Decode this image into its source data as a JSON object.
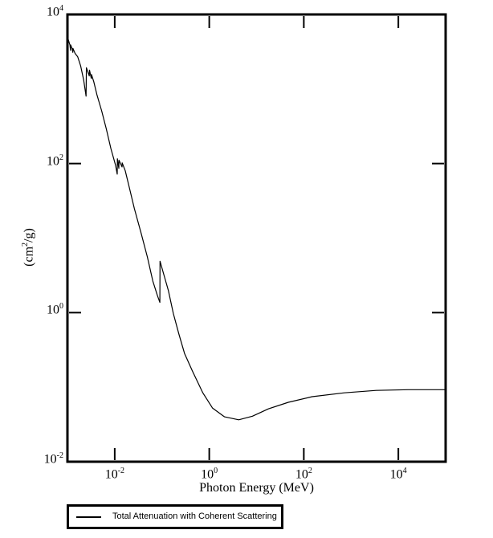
{
  "chart": {
    "xlabel": "Photon Energy (MeV)",
    "ylabel": {
      "pre": "(cm",
      "sup": "2",
      "post": "/g)"
    },
    "x_log_range": [
      -3,
      5
    ],
    "y_log_range": [
      -2,
      4
    ],
    "x_ticks": [
      {
        "base": "10",
        "exp": "-2"
      },
      {
        "base": "10",
        "exp": "0"
      },
      {
        "base": "10",
        "exp": "2"
      },
      {
        "base": "10",
        "exp": "4"
      }
    ],
    "y_ticks": [
      {
        "base": "10",
        "exp": "4"
      },
      {
        "base": "10",
        "exp": "2"
      },
      {
        "base": "10",
        "exp": "0"
      },
      {
        "base": "10",
        "exp": "-2"
      }
    ],
    "line_color": "#000000",
    "background_color": "#ffffff"
  },
  "legend": {
    "label": "Total Attenuation with Coherent Scattering"
  },
  "chart_data": {
    "type": "line",
    "title": "",
    "xlabel": "Photon Energy (MeV)",
    "ylabel": "(cm^2/g)",
    "x_scale": "log",
    "y_scale": "log",
    "xlim": [
      0.001,
      100000
    ],
    "ylim": [
      0.01,
      10000
    ],
    "grid": false,
    "legend_position": "bottom-left-outside",
    "series": [
      {
        "name": "Total Attenuation with Coherent Scattering",
        "color": "#000000",
        "points": [
          [
            0.00102,
            4800
          ],
          [
            0.00113,
            3900
          ],
          [
            0.00116,
            3300
          ],
          [
            0.00117,
            3900
          ],
          [
            0.00125,
            3500
          ],
          [
            0.0013,
            3100
          ],
          [
            0.00131,
            3500
          ],
          [
            0.00145,
            3000
          ],
          [
            0.00165,
            2700
          ],
          [
            0.0019,
            2050
          ],
          [
            0.0022,
            1320
          ],
          [
            0.00248,
            800
          ],
          [
            0.00252,
            1930
          ],
          [
            0.0029,
            1500
          ],
          [
            0.00293,
            1790
          ],
          [
            0.0032,
            1390
          ],
          [
            0.00323,
            1560
          ],
          [
            0.0036,
            1250
          ],
          [
            0.0042,
            840
          ],
          [
            0.0053,
            510
          ],
          [
            0.0066,
            295
          ],
          [
            0.0083,
            159
          ],
          [
            0.0104,
            95
          ],
          [
            0.0113,
            72
          ],
          [
            0.0114,
            116
          ],
          [
            0.0122,
            86
          ],
          [
            0.0123,
            111
          ],
          [
            0.0143,
            90
          ],
          [
            0.0144,
            102
          ],
          [
            0.0167,
            80
          ],
          [
            0.02,
            50
          ],
          [
            0.026,
            25
          ],
          [
            0.036,
            11.8
          ],
          [
            0.049,
            5.6
          ],
          [
            0.064,
            2.66
          ],
          [
            0.08,
            1.7
          ],
          [
            0.09,
            1.37
          ],
          [
            0.091,
            4.9
          ],
          [
            0.113,
            3.0
          ],
          [
            0.137,
            1.96
          ],
          [
            0.173,
            0.98
          ],
          [
            0.227,
            0.52
          ],
          [
            0.3,
            0.284
          ],
          [
            0.44,
            0.165
          ],
          [
            0.73,
            0.084
          ],
          [
            1.17,
            0.0525
          ],
          [
            2.1,
            0.04
          ],
          [
            4.2,
            0.0365
          ],
          [
            8.2,
            0.0408
          ],
          [
            18,
            0.0513
          ],
          [
            47,
            0.0627
          ],
          [
            150,
            0.0745
          ],
          [
            720,
            0.0839
          ],
          [
            3400,
            0.0905
          ],
          [
            16000,
            0.0926
          ],
          [
            100000,
            0.0926
          ]
        ]
      }
    ]
  }
}
